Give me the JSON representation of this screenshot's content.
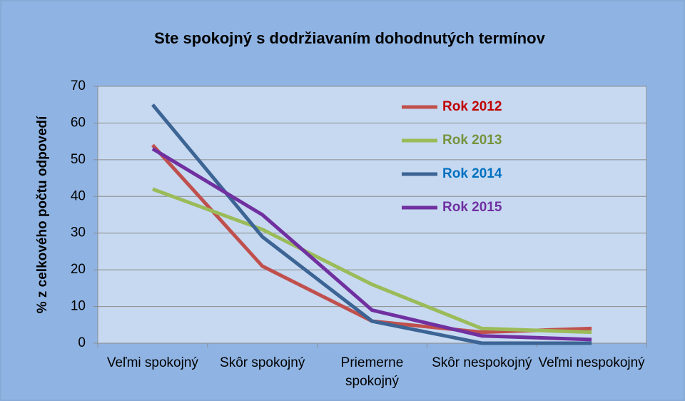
{
  "chart_data": {
    "type": "line",
    "title": "Ste spokojný s dodržiavaním dohodnutých termínov",
    "y_label": "% z celkového počtu odpovedí",
    "categories": [
      "Veľmi spokojný",
      "Skôr spokojný",
      "Priemerne spokojný",
      "Skôr nespokojný",
      "Veľmi nespokojný"
    ],
    "series": [
      {
        "name": "Rok 2012",
        "color": "#c0504d",
        "legend_text_color": "#c00000",
        "values": [
          54,
          21,
          6,
          3,
          4
        ]
      },
      {
        "name": "Rok 2013",
        "color": "#9bbb59",
        "legend_text_color": "#77933c",
        "values": [
          42,
          31,
          16,
          4,
          3
        ]
      },
      {
        "name": "Rok 2014",
        "color": "#3c6494",
        "legend_text_color": "#0070c0",
        "values": [
          65,
          29,
          6,
          0,
          0
        ]
      },
      {
        "name": "Rok 2015",
        "color": "#7030a0",
        "legend_text_color": "#7030a0",
        "values": [
          53,
          35,
          9,
          2,
          1
        ]
      }
    ],
    "ylim": [
      0,
      70
    ],
    "yticks": [
      0,
      10,
      20,
      30,
      40,
      50,
      60,
      70
    ],
    "grid": true,
    "legend": "upper right"
  }
}
